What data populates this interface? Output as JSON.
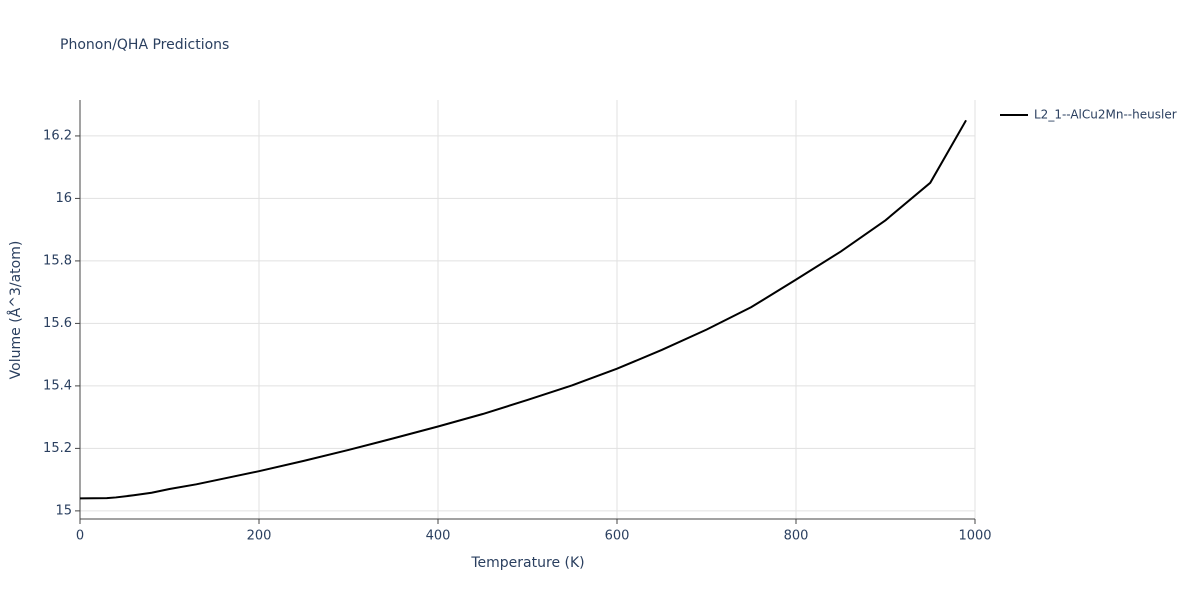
{
  "chart_data": {
    "type": "line",
    "title": "Phonon/QHA Predictions",
    "x_label": "Temperature (K)",
    "y_label": "Volume (Å^3/atom)",
    "x": [
      0,
      30,
      40,
      60,
      80,
      100,
      130,
      160,
      200,
      250,
      300,
      350,
      400,
      450,
      500,
      550,
      600,
      650,
      700,
      750,
      800,
      850,
      900,
      950,
      990
    ],
    "series": [
      {
        "name": "L2_1--AlCu2Mn--heusler",
        "color": "#000000",
        "values": [
          15.04,
          15.041,
          15.043,
          15.05,
          15.058,
          15.07,
          15.085,
          15.103,
          15.127,
          15.16,
          15.195,
          15.232,
          15.27,
          15.31,
          15.355,
          15.402,
          15.455,
          15.515,
          15.58,
          15.652,
          15.74,
          15.83,
          15.93,
          16.05,
          16.25
        ]
      }
    ],
    "xlim": [
      0,
      1000
    ],
    "xticks": [
      0,
      200,
      400,
      600,
      800,
      1000
    ],
    "ylim": [
      14.974,
      16.315
    ],
    "yticks": [
      15,
      15.2,
      15.4,
      15.6,
      15.8,
      16,
      16.2
    ],
    "grid": true,
    "legend": "right"
  }
}
